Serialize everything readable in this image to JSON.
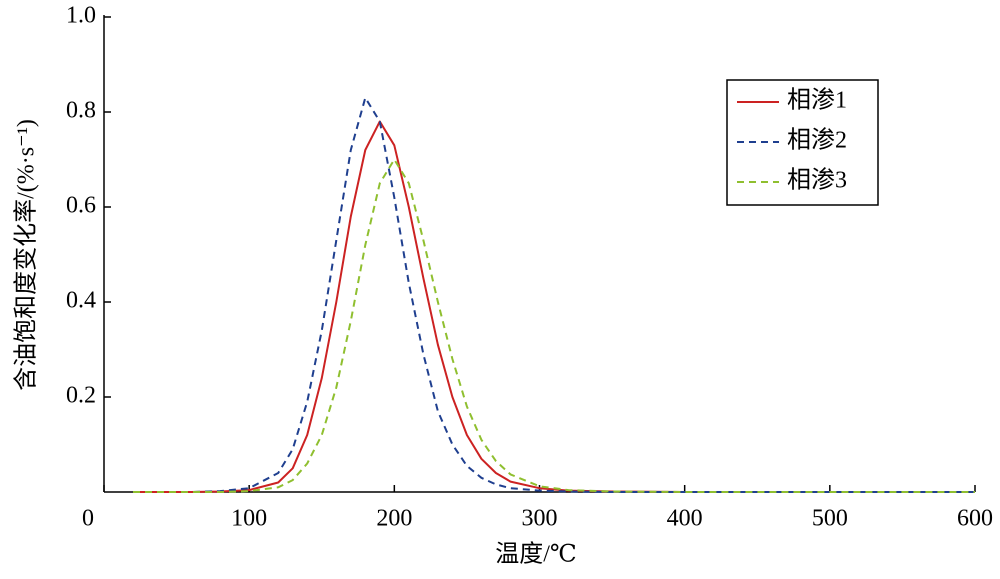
{
  "chart_data": {
    "type": "line",
    "xlabel": "温度/℃",
    "ylabel": "含油饱和度变化率/(%·s⁻¹)",
    "x": [
      20,
      40,
      60,
      80,
      100,
      120,
      130,
      140,
      150,
      160,
      170,
      180,
      190,
      200,
      210,
      220,
      230,
      240,
      250,
      260,
      270,
      280,
      300,
      320,
      350,
      400,
      500,
      600
    ],
    "series": [
      {
        "name": "相渗1",
        "color": "#cc2222",
        "dash": false,
        "values": [
          0,
          0,
          0,
          0.001,
          0.004,
          0.02,
          0.05,
          0.12,
          0.24,
          0.4,
          0.58,
          0.72,
          0.78,
          0.73,
          0.6,
          0.45,
          0.31,
          0.2,
          0.12,
          0.07,
          0.04,
          0.022,
          0.008,
          0.003,
          0.001,
          0,
          0,
          0
        ]
      },
      {
        "name": "相渗2",
        "color": "#1f3f8f",
        "dash": true,
        "values": [
          0,
          0,
          0,
          0.002,
          0.008,
          0.04,
          0.09,
          0.19,
          0.34,
          0.53,
          0.72,
          0.83,
          0.78,
          0.62,
          0.44,
          0.29,
          0.17,
          0.1,
          0.055,
          0.03,
          0.016,
          0.008,
          0.003,
          0.001,
          0,
          0,
          0,
          0
        ]
      },
      {
        "name": "相渗3",
        "color": "#8fbf2f",
        "dash": true,
        "values": [
          0,
          0,
          0,
          0,
          0.002,
          0.01,
          0.025,
          0.06,
          0.12,
          0.22,
          0.36,
          0.52,
          0.65,
          0.7,
          0.65,
          0.53,
          0.4,
          0.28,
          0.18,
          0.11,
          0.065,
          0.037,
          0.012,
          0.004,
          0.001,
          0,
          0,
          0
        ]
      }
    ],
    "xlim": [
      0,
      600
    ],
    "xticks": [
      0,
      100,
      200,
      300,
      400,
      500,
      600
    ],
    "ylim": [
      0,
      1
    ],
    "yticks": [
      0.2,
      0.4,
      0.6,
      0.8,
      {
        "value": 1,
        "label": "1.0"
      }
    ],
    "legend": "upper-right",
    "grid": false
  }
}
